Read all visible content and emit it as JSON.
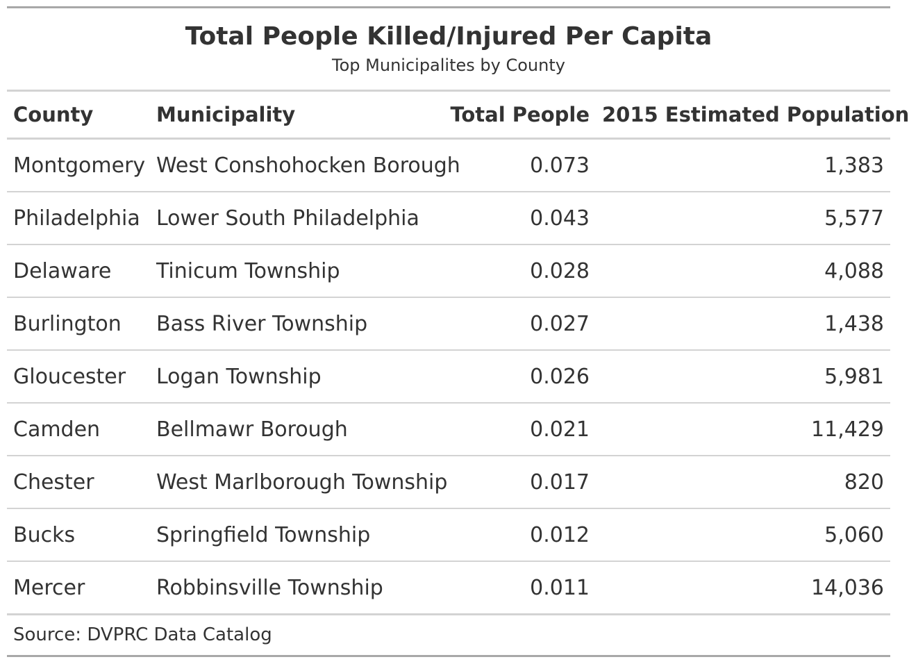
{
  "title": "Total People Killed/Injured Per Capita",
  "subtitle": "Top Municipalites by County",
  "columns": {
    "county": "County",
    "municipality": "Municipality",
    "total_people": "Total People",
    "population": "2015 Estimated Population"
  },
  "rows": [
    {
      "county": "Montgomery",
      "municipality": "West Conshohocken Borough",
      "total_people": "0.073",
      "population": "1,383"
    },
    {
      "county": "Philadelphia",
      "municipality": "Lower South Philadelphia",
      "total_people": "0.043",
      "population": "5,577"
    },
    {
      "county": "Delaware",
      "municipality": "Tinicum Township",
      "total_people": "0.028",
      "population": "4,088"
    },
    {
      "county": "Burlington",
      "municipality": "Bass River Township",
      "total_people": "0.027",
      "population": "1,438"
    },
    {
      "county": "Gloucester",
      "municipality": "Logan Township",
      "total_people": "0.026",
      "population": "5,981"
    },
    {
      "county": "Camden",
      "municipality": "Bellmawr Borough",
      "total_people": "0.021",
      "population": "11,429"
    },
    {
      "county": "Chester",
      "municipality": "West Marlborough Township",
      "total_people": "0.017",
      "population": "820"
    },
    {
      "county": "Bucks",
      "municipality": "Springfield Township",
      "total_people": "0.012",
      "population": "5,060"
    },
    {
      "county": "Mercer",
      "municipality": "Robbinsville Township",
      "total_people": "0.011",
      "population": "14,036"
    }
  ],
  "source_note": "Source: DVPRC Data Catalog"
}
